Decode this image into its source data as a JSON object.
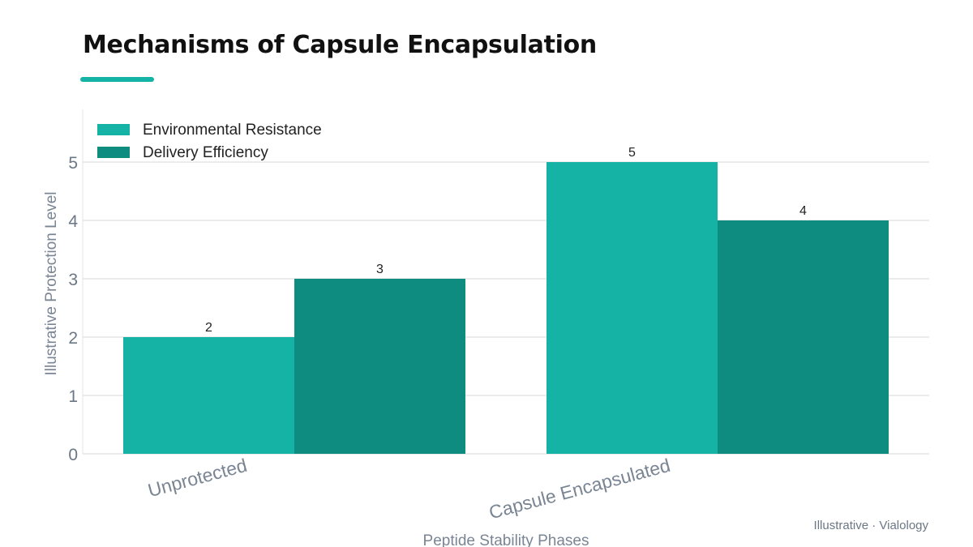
{
  "title": "Mechanisms of Capsule Encapsulation",
  "credit": "Illustrative · Vialology",
  "colors": {
    "accent": "#14b3a5",
    "series1": "#14b3a5",
    "series2": "#0e8c7f",
    "grid": "#e6e6e6"
  },
  "chart_data": {
    "type": "bar",
    "title": "Mechanisms of Capsule Encapsulation",
    "categories": [
      "Unprotected",
      "Capsule Encapsulated"
    ],
    "series": [
      {
        "name": "Environmental Resistance",
        "values": [
          2,
          5
        ]
      },
      {
        "name": "Delivery Efficiency",
        "values": [
          3,
          4
        ]
      }
    ],
    "xlabel": "Peptide Stability Phases",
    "ylabel": "Illustrative Protection Level",
    "ylim": [
      0,
      5
    ],
    "yticks": [
      0,
      1,
      2,
      3,
      4,
      5
    ],
    "grid": true,
    "legend_position": "top-left"
  }
}
